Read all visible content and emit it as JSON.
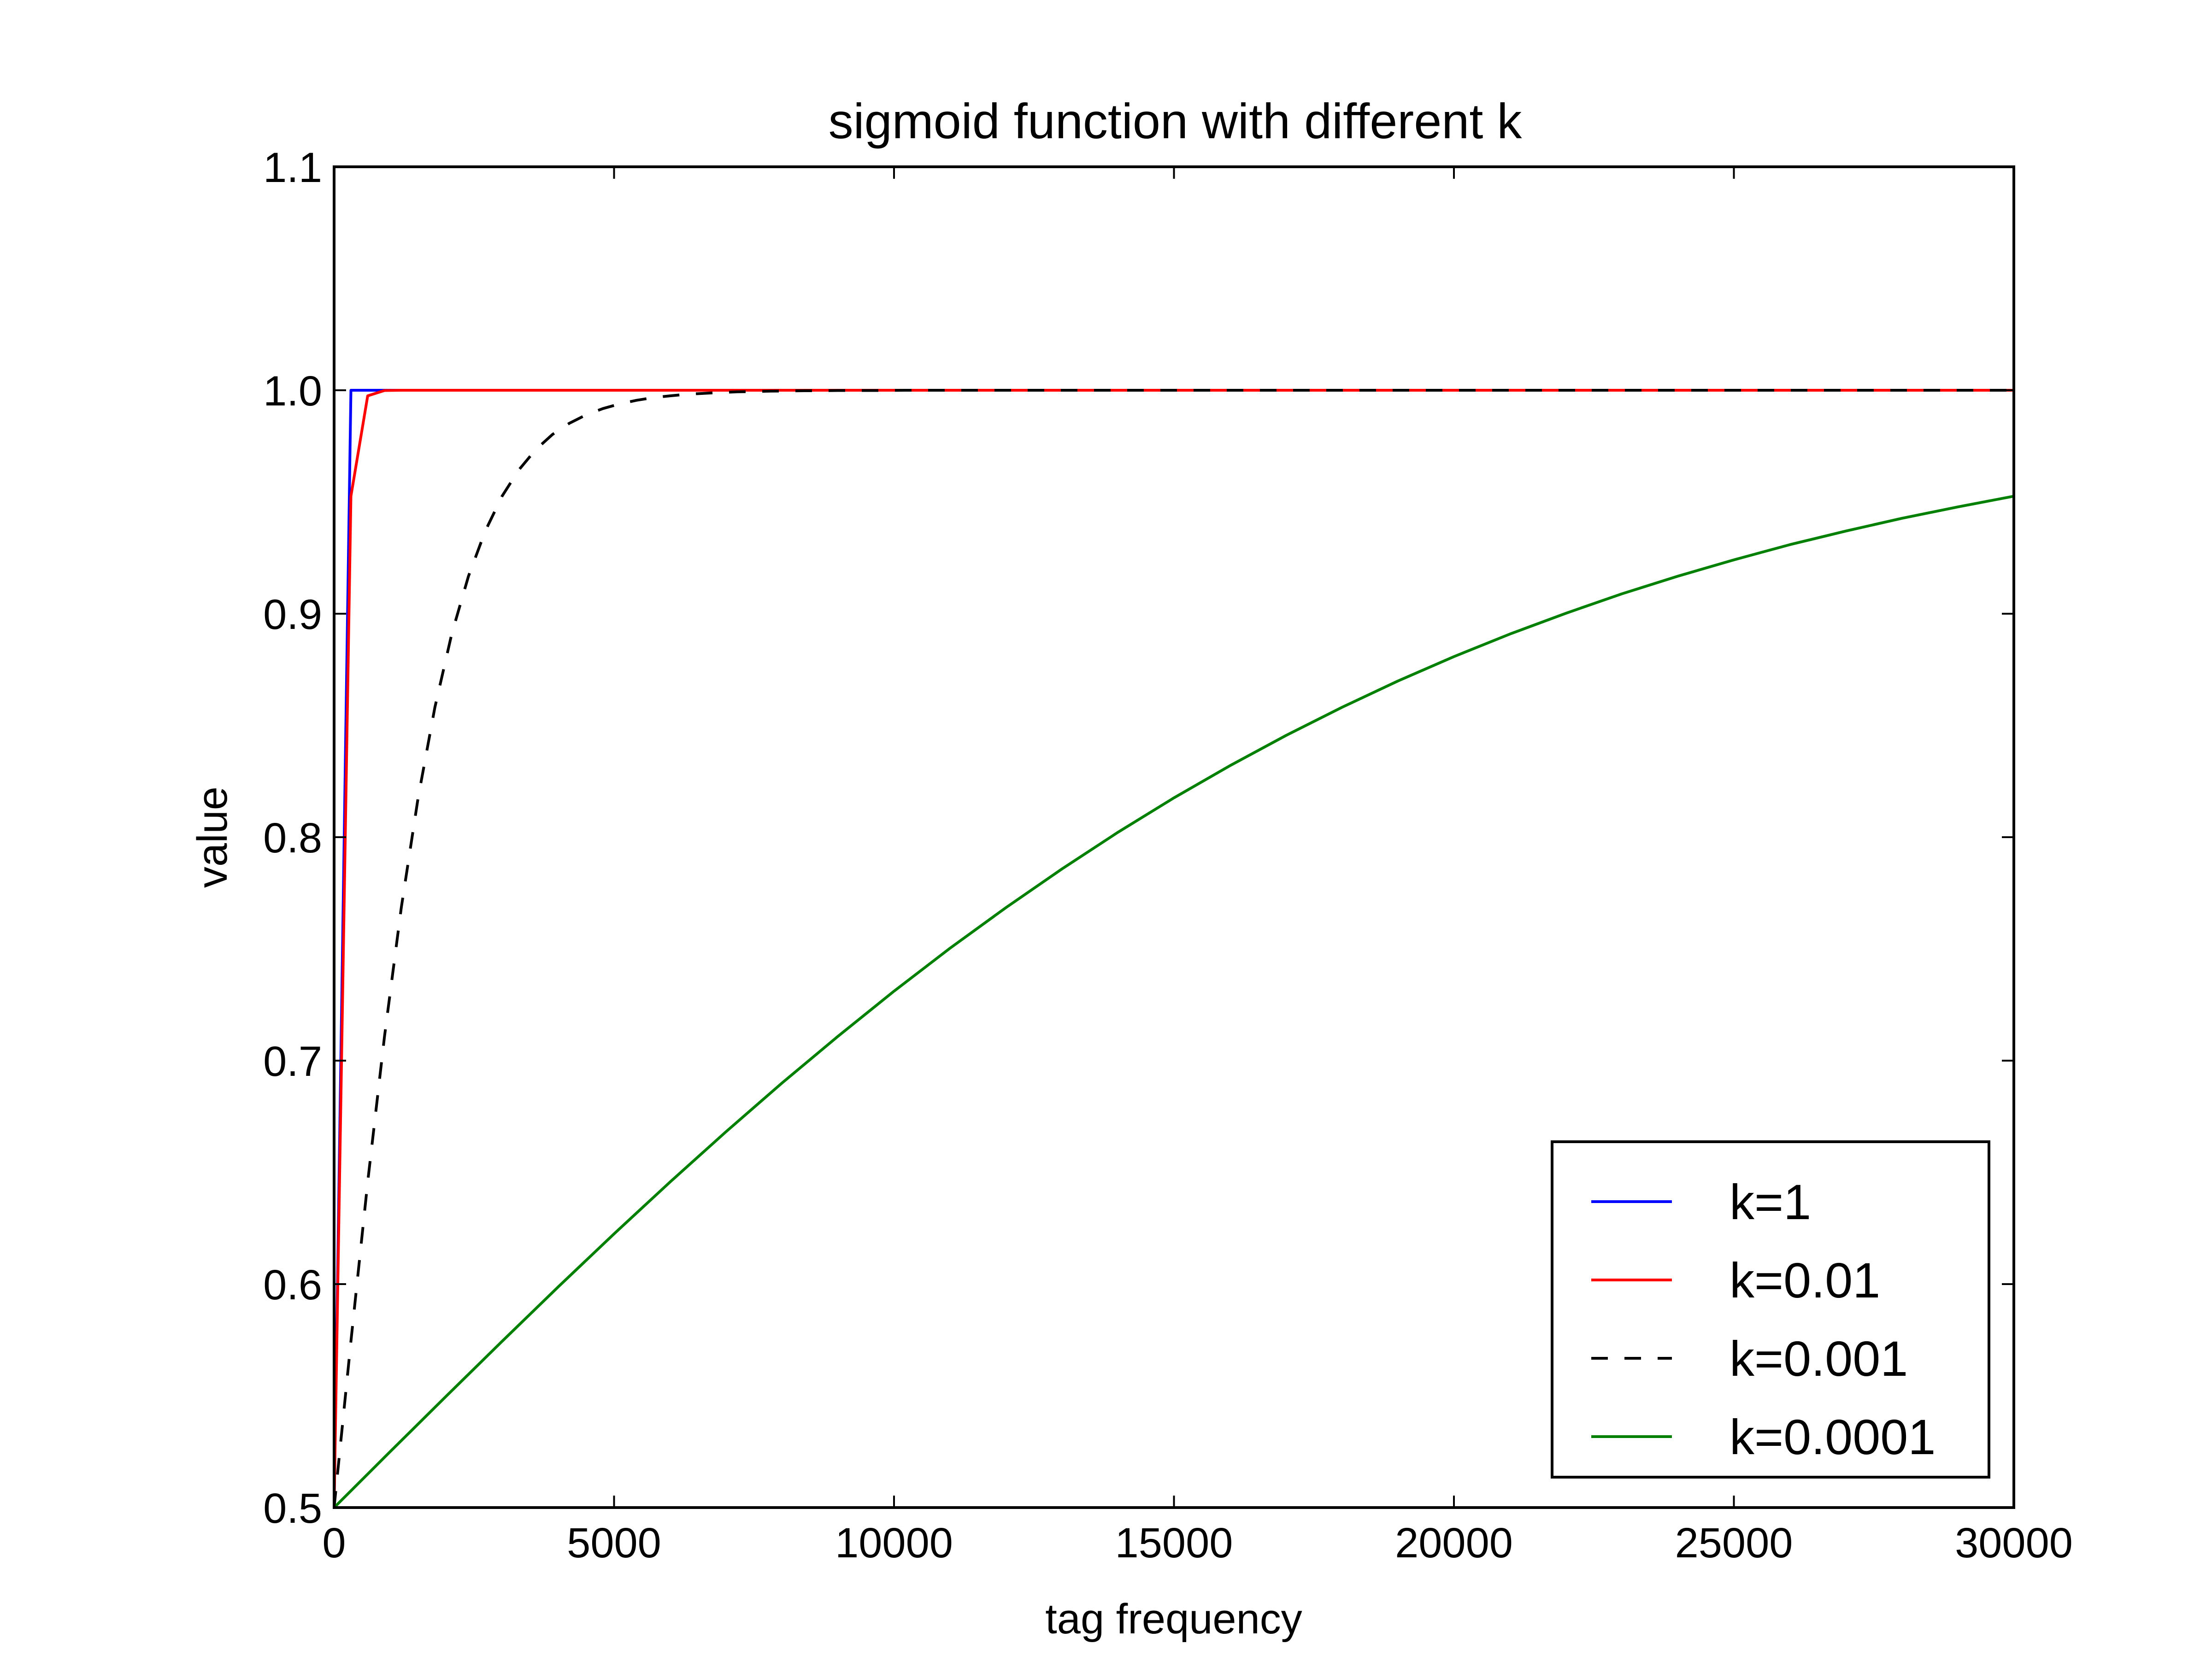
{
  "chart_data": {
    "type": "line",
    "title": "sigmoid function with different k",
    "xlabel": "tag frequency",
    "ylabel": "value",
    "xlim": [
      0,
      30000
    ],
    "ylim": [
      0.5,
      1.1
    ],
    "xticks": [
      0,
      5000,
      10000,
      15000,
      20000,
      25000,
      30000
    ],
    "xtick_labels": [
      "0",
      "5000",
      "10000",
      "15000",
      "20000",
      "25000",
      "30000"
    ],
    "yticks": [
      0.5,
      0.6,
      0.7,
      0.8,
      0.9,
      1.0,
      1.1
    ],
    "ytick_labels": [
      "0.5",
      "0.6",
      "0.7",
      "0.8",
      "0.9",
      "1.0",
      "1.1"
    ],
    "grid": false,
    "legend_position": "lower-right",
    "series": [
      {
        "name": "k=1",
        "k": 1,
        "color": "#0000ff",
        "dash": "solid",
        "x": [
          0,
          300,
          600,
          900,
          1200,
          3000,
          6000,
          10000,
          15000,
          20000,
          25000,
          30000
        ],
        "y": [
          0.5,
          1.0,
          1.0,
          1.0,
          1.0,
          1.0,
          1.0,
          1.0,
          1.0,
          1.0,
          1.0,
          1.0
        ]
      },
      {
        "name": "k=0.01",
        "k": 0.01,
        "color": "#ff0000",
        "dash": "solid",
        "x": [
          0,
          300,
          600,
          900,
          1200,
          3000,
          6000,
          10000,
          15000,
          20000,
          25000,
          30000
        ],
        "y": [
          0.5,
          0.9526,
          0.9975,
          0.9999,
          1.0,
          1.0,
          1.0,
          1.0,
          1.0,
          1.0,
          1.0,
          1.0
        ]
      },
      {
        "name": "k=0.001",
        "k": 0.001,
        "color": "#000000",
        "dash": "dashed",
        "x": [
          0,
          300,
          600,
          900,
          1200,
          1500,
          1800,
          2100,
          2400,
          2700,
          3000,
          3300,
          3600,
          3900,
          4200,
          4500,
          4800,
          5100,
          5400,
          5700,
          6000,
          6300,
          6600,
          6900,
          7200,
          7500,
          7800,
          8100,
          8400,
          8700,
          9000,
          9300,
          9600,
          9900,
          10200,
          10500,
          10800,
          11100,
          11400,
          11700,
          12000,
          12300,
          12600,
          12900,
          13200,
          13500,
          13800,
          14100,
          14400,
          14700,
          15000,
          15300,
          15600,
          15900,
          16200,
          16500,
          16800,
          17100,
          17400,
          17700,
          18000,
          18300,
          18600,
          18900,
          19200,
          19500,
          19800,
          20100,
          20400,
          20700,
          21000,
          21300,
          21600,
          21900,
          22200,
          22500,
          22800,
          23100,
          23400,
          23700,
          24000,
          24300,
          24600,
          24900,
          25200,
          25500,
          25800,
          26100,
          26400,
          26700,
          27000,
          27300,
          27600,
          27900,
          28200,
          28500,
          28800,
          29100,
          29400,
          29700,
          30000
        ],
        "y": [
          0.5,
          0.5744,
          0.6457,
          0.7109,
          0.7685,
          0.8176,
          0.8581,
          0.8909,
          0.9168,
          0.937,
          0.9526,
          0.9644,
          0.9734,
          0.9802,
          0.9852,
          0.989,
          0.9918,
          0.9939,
          0.9955,
          0.9967,
          0.9975,
          0.9982,
          0.9986,
          0.999,
          0.9993,
          0.9994,
          0.9996,
          0.9997,
          0.9998,
          0.9998,
          0.9999,
          0.9999,
          0.9999,
          0.9999,
          1.0,
          1.0,
          1.0,
          1.0,
          1.0,
          1.0,
          1.0,
          1.0,
          1.0,
          1.0,
          1.0,
          1.0,
          1.0,
          1.0,
          1.0,
          1.0,
          1.0,
          1.0,
          1.0,
          1.0,
          1.0,
          1.0,
          1.0,
          1.0,
          1.0,
          1.0,
          1.0,
          1.0,
          1.0,
          1.0,
          1.0,
          1.0,
          1.0,
          1.0,
          1.0,
          1.0,
          1.0,
          1.0,
          1.0,
          1.0,
          1.0,
          1.0,
          1.0,
          1.0,
          1.0,
          1.0,
          1.0,
          1.0,
          1.0,
          1.0,
          1.0,
          1.0,
          1.0,
          1.0,
          1.0,
          1.0,
          1.0,
          1.0,
          1.0,
          1.0,
          1.0,
          1.0,
          1.0,
          1.0,
          1.0,
          1.0,
          1.0
        ]
      },
      {
        "name": "k=0.0001",
        "k": 0.0001,
        "color": "#008000",
        "dash": "solid",
        "x": [
          0,
          1000,
          2000,
          3000,
          4000,
          5000,
          6000,
          7000,
          8000,
          9000,
          10000,
          11000,
          12000,
          13000,
          14000,
          15000,
          16000,
          17000,
          18000,
          19000,
          20000,
          21000,
          22000,
          23000,
          24000,
          25000,
          26000,
          27000,
          28000,
          29000,
          30000
        ],
        "y": [
          0.5,
          0.525,
          0.5498,
          0.5744,
          0.5987,
          0.6225,
          0.6457,
          0.6682,
          0.69,
          0.7109,
          0.7311,
          0.7503,
          0.7685,
          0.7858,
          0.8022,
          0.8176,
          0.832,
          0.8455,
          0.8581,
          0.8699,
          0.8808,
          0.8909,
          0.9002,
          0.9089,
          0.9168,
          0.9241,
          0.9309,
          0.937,
          0.9427,
          0.9478,
          0.9526
        ]
      }
    ]
  }
}
